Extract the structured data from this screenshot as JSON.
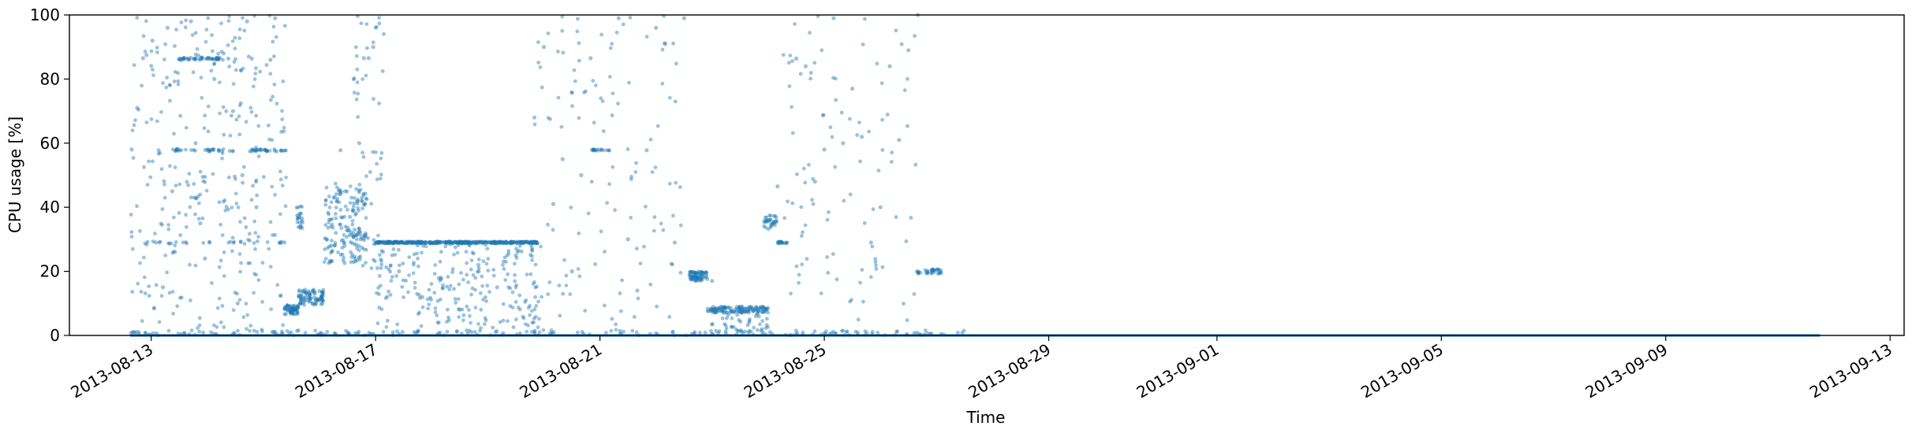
{
  "chart_data": {
    "type": "scatter",
    "title": "",
    "xlabel": "Time",
    "ylabel": "CPU usage [%]",
    "ylim": [
      0,
      100
    ],
    "xlim": [
      "2013-08-11T13:00",
      "2013-09-13T06:00"
    ],
    "grid": false,
    "legend": "none",
    "x_scale": "date",
    "color": "#1f77b4",
    "point_alpha": 0.45,
    "y_ticks": [
      "0",
      "20",
      "40",
      "60",
      "80",
      "100"
    ],
    "x_ticks": [
      "2013-08-13",
      "2013-08-17",
      "2013-08-21",
      "2013-08-25",
      "2013-08-29",
      "2013-09-01",
      "2013-09-05",
      "2013-09-09",
      "2013-09-13"
    ],
    "x_tick_dates": [
      "2013-08-13",
      "2013-08-17",
      "2013-08-21",
      "2013-08-25",
      "2013-08-29",
      "2013-09-01",
      "2013-09-05",
      "2013-09-09",
      "2013-09-13"
    ],
    "series": [
      {
        "points": [
          [
            "2013-08-12T15:40",
            58.0
          ],
          [
            "2013-08-12T18:00",
            71.0
          ],
          [
            "2013-08-12T20:30",
            86.5
          ],
          [
            "2013-08-12T22:00",
            87.5
          ],
          [
            "2013-08-13T00:30",
            92.0
          ],
          [
            "2013-08-13T02:00",
            29.0
          ],
          [
            "2013-08-13T03:10",
            57.8
          ],
          [
            "2013-08-13T05:00",
            15.0
          ],
          [
            "2013-08-13T07:00",
            96.0
          ],
          [
            "2013-08-13T09:00",
            45.0
          ],
          [
            "2013-08-13T11:00",
            58.2
          ],
          [
            "2013-08-13T13:00",
            86.4
          ],
          [
            "2013-08-13T14:00",
            86.4
          ],
          [
            "2013-08-13T15:00",
            86.4
          ],
          [
            "2013-08-13T17:00",
            98.0
          ],
          [
            "2013-08-13T19:00",
            60.0
          ],
          [
            "2013-08-13T21:00",
            35.0
          ],
          [
            "2013-08-13T23:00",
            24.0
          ],
          [
            "2013-08-14T01:00",
            29.0
          ],
          [
            "2013-08-14T03:00",
            80.0
          ],
          [
            "2013-08-14T05:00",
            57.8
          ],
          [
            "2013-08-14T07:00",
            88.0
          ],
          [
            "2013-08-14T09:00",
            86.4
          ],
          [
            "2013-08-14T11:00",
            70.0
          ],
          [
            "2013-08-14T13:00",
            10.0
          ],
          [
            "2013-08-14T15:00",
            50.0
          ],
          [
            "2013-08-14T17:00",
            98.0
          ],
          [
            "2013-08-14T19:00",
            86.4
          ],
          [
            "2013-08-14T21:00",
            40.0
          ],
          [
            "2013-08-14T23:00",
            57.8
          ],
          [
            "2013-08-15T01:00",
            57.8
          ],
          [
            "2013-08-15T03:00",
            86.0
          ],
          [
            "2013-08-15T05:00",
            99.0
          ],
          [
            "2013-08-15T07:00",
            29.0
          ],
          [
            "2013-08-15T09:00",
            29.0
          ],
          [
            "2013-08-15T10:30",
            8.0
          ],
          [
            "2013-08-15T12:00",
            7.5
          ],
          [
            "2013-08-15T13:30",
            8.2
          ],
          [
            "2013-08-15T15:00",
            37.0
          ],
          [
            "2013-08-15T16:30",
            36.5
          ],
          [
            "2013-08-15T18:00",
            12.0
          ],
          [
            "2013-08-15T20:00",
            11.5
          ],
          [
            "2013-08-15T22:00",
            13.0
          ],
          [
            "2013-08-16T00:00",
            11.0
          ],
          [
            "2013-08-16T03:00",
            30.0
          ],
          [
            "2013-08-16T05:00",
            28.0
          ],
          [
            "2013-08-16T07:00",
            32.0
          ],
          [
            "2013-08-16T09:00",
            57.8
          ],
          [
            "2013-08-16T11:00",
            45.0
          ],
          [
            "2013-08-16T13:00",
            37.0
          ],
          [
            "2013-08-16T15:00",
            33.0
          ],
          [
            "2013-08-16T17:00",
            60.0
          ],
          [
            "2013-08-16T19:00",
            86.5
          ],
          [
            "2013-08-16T21:00",
            86.5
          ],
          [
            "2013-08-16T23:00",
            90.0
          ],
          [
            "2013-08-17T02:00",
            29.0
          ],
          [
            "2013-08-17T08:00",
            29.0
          ],
          [
            "2013-08-17T16:00",
            29.0
          ],
          [
            "2013-08-18T00:00",
            29.0
          ],
          [
            "2013-08-18T08:00",
            29.0
          ],
          [
            "2013-08-18T16:00",
            29.0
          ],
          [
            "2013-08-19T00:00",
            29.0
          ],
          [
            "2013-08-19T08:00",
            29.0
          ],
          [
            "2013-08-17T10:00",
            20.0
          ],
          [
            "2013-08-17T20:00",
            12.0
          ],
          [
            "2013-08-18T04:00",
            18.0
          ],
          [
            "2013-08-18T12:00",
            8.0
          ],
          [
            "2013-08-18T20:00",
            22.0
          ],
          [
            "2013-08-19T04:00",
            15.0
          ],
          [
            "2013-08-19T12:00",
            25.0
          ],
          [
            "2013-08-19T20:00",
            68.0
          ],
          [
            "2013-08-20T00:00",
            90.0
          ],
          [
            "2013-08-20T04:00",
            41.0
          ],
          [
            "2013-08-20T08:00",
            55.0
          ],
          [
            "2013-08-20T12:00",
            20.0
          ],
          [
            "2013-08-20T16:00",
            50.0
          ],
          [
            "2013-08-20T20:00",
            86.5
          ],
          [
            "2013-08-21T00:00",
            57.8
          ],
          [
            "2013-08-21T04:00",
            57.8
          ],
          [
            "2013-08-21T08:00",
            99.0
          ],
          [
            "2013-08-21T12:00",
            30.0
          ],
          [
            "2013-08-21T16:00",
            14.0
          ],
          [
            "2013-08-21T20:00",
            57.8
          ],
          [
            "2013-08-22T00:00",
            96.0
          ],
          [
            "2013-08-22T04:00",
            91.0
          ],
          [
            "2013-08-22T08:00",
            29.0
          ],
          [
            "2013-08-22T12:00",
            99.0
          ],
          [
            "2013-08-22T16:00",
            18.0
          ],
          [
            "2013-08-22T20:00",
            19.0
          ],
          [
            "2013-08-23T00:00",
            17.0
          ],
          [
            "2013-08-23T04:00",
            8.0
          ],
          [
            "2013-08-23T08:00",
            8.5
          ],
          [
            "2013-08-23T12:00",
            7.5
          ],
          [
            "2013-08-23T16:00",
            8.2
          ],
          [
            "2013-08-23T20:00",
            6.0
          ],
          [
            "2013-08-24T00:00",
            36.0
          ],
          [
            "2013-08-24T02:00",
            35.0
          ],
          [
            "2013-08-24T04:00",
            46.5
          ],
          [
            "2013-08-24T06:00",
            29.0
          ],
          [
            "2013-08-24T08:00",
            29.0
          ],
          [
            "2013-08-24T12:00",
            86.4
          ],
          [
            "2013-08-24T16:00",
            84.0
          ],
          [
            "2013-08-24T20:00",
            48.0
          ],
          [
            "2013-08-25T00:00",
            58.0
          ],
          [
            "2013-08-25T04:00",
            99.0
          ],
          [
            "2013-08-25T08:00",
            60.0
          ],
          [
            "2013-08-25T12:00",
            77.0
          ],
          [
            "2013-08-25T16:00",
            62.0
          ],
          [
            "2013-08-25T20:00",
            29.0
          ],
          [
            "2013-08-26T00:00",
            40.0
          ],
          [
            "2013-08-26T04:00",
            84.0
          ],
          [
            "2013-08-26T08:00",
            61.0
          ],
          [
            "2013-08-26T12:00",
            89.0
          ],
          [
            "2013-08-26T16:00",
            100.0
          ],
          [
            "2013-08-26T20:00",
            20.0
          ],
          [
            "2013-08-27T00:00",
            20.5
          ],
          [
            "2013-08-27T02:00",
            19.5
          ]
        ]
      }
    ]
  }
}
